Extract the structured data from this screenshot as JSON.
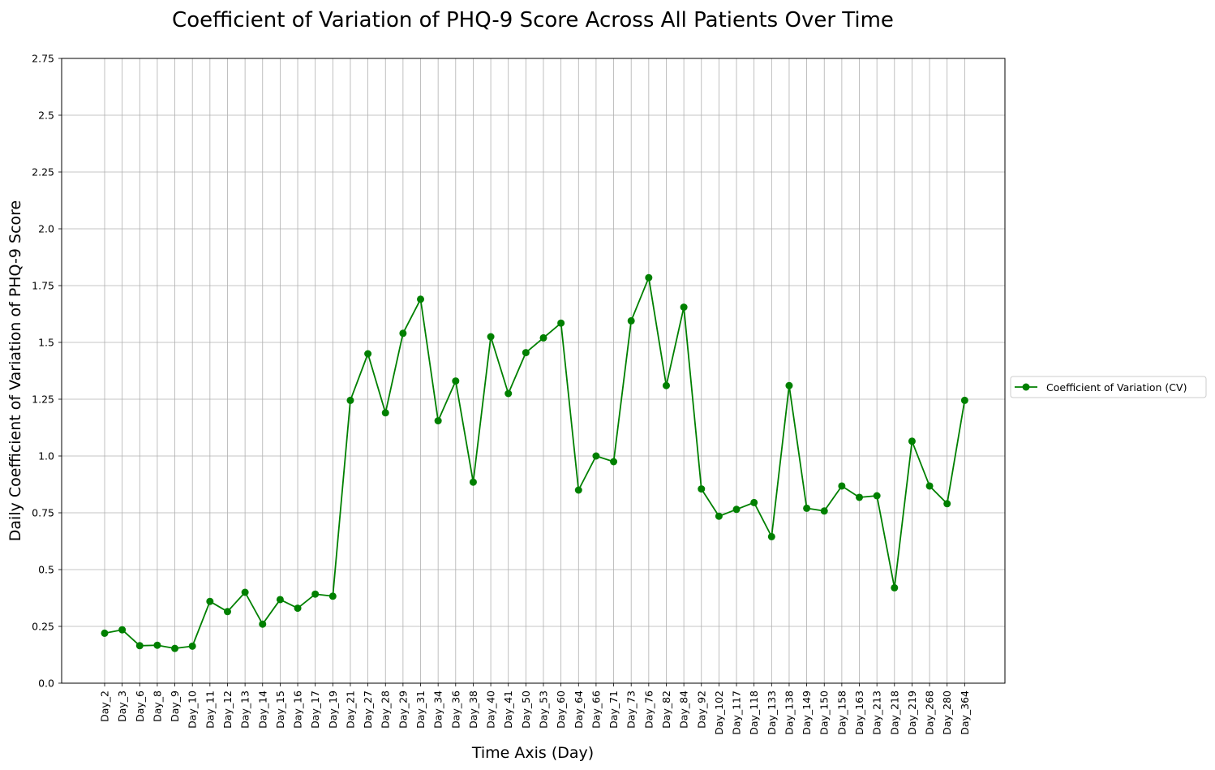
{
  "chart_data": {
    "type": "line",
    "title": "Coefficient of Variation of PHQ-9 Score Across All Patients Over Time",
    "xlabel": "Time Axis (Day)",
    "ylabel": "Daily Coefficient of Variation of PHQ-9 Score",
    "ylim": [
      0,
      2.75
    ],
    "yticks": [
      "0.0",
      "0.25",
      "0.5",
      "0.75",
      "1.0",
      "1.25",
      "1.5",
      "1.75",
      "2.0",
      "2.25",
      "2.5",
      "2.75"
    ],
    "grid": true,
    "legend_position": "right, outside plot",
    "categories": [
      "Day_2",
      "Day_3",
      "Day_6",
      "Day_8",
      "Day_9",
      "Day_10",
      "Day_11",
      "Day_12",
      "Day_13",
      "Day_14",
      "Day_15",
      "Day_16",
      "Day_17",
      "Day_19",
      "Day_21",
      "Day_27",
      "Day_28",
      "Day_29",
      "Day_31",
      "Day_34",
      "Day_36",
      "Day_38",
      "Day_40",
      "Day_41",
      "Day_50",
      "Day_53",
      "Day_60",
      "Day_64",
      "Day_66",
      "Day_71",
      "Day_73",
      "Day_76",
      "Day_82",
      "Day_84",
      "Day_92",
      "Day_102",
      "Day_117",
      "Day_118",
      "Day_133",
      "Day_138",
      "Day_149",
      "Day_150",
      "Day_158",
      "Day_163",
      "Day_213",
      "Day_218",
      "Day_219",
      "Day_268",
      "Day_280",
      "Day_364"
    ],
    "series": [
      {
        "name": "Coefficient of Variation (CV)",
        "color": "#008000",
        "marker": "circle",
        "values": [
          0.22,
          0.235,
          0.165,
          0.167,
          0.153,
          0.163,
          0.36,
          0.315,
          0.4,
          0.26,
          0.368,
          0.33,
          0.392,
          0.383,
          1.245,
          1.45,
          1.19,
          1.54,
          1.69,
          1.155,
          1.33,
          0.885,
          1.525,
          1.275,
          1.455,
          1.52,
          1.585,
          0.85,
          1.0,
          0.975,
          1.595,
          1.785,
          1.31,
          1.655,
          0.855,
          0.735,
          0.765,
          0.795,
          0.645,
          1.31,
          0.77,
          0.758,
          0.868,
          0.818,
          0.825,
          0.42,
          1.065,
          0.868,
          0.79,
          1.245
        ]
      }
    ]
  }
}
